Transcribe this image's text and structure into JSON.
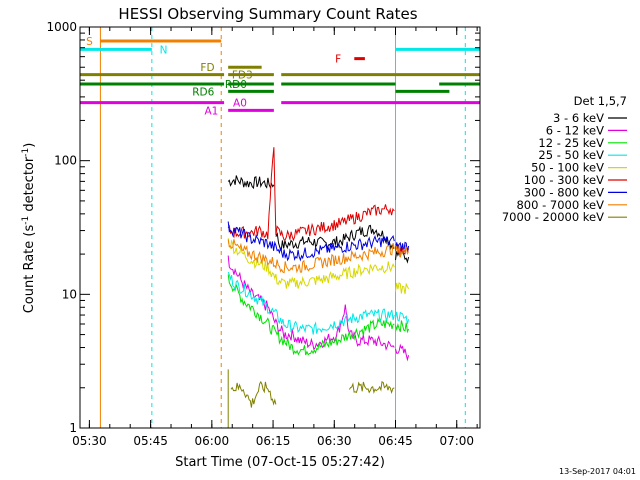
{
  "chart_data": {
    "type": "line",
    "title": "HESSI Observing Summary Count Rates",
    "xlabel": "Start Time (07-Oct-15 05:27:42)",
    "ylabel": "Count Rate (s-1 detector-1)",
    "ylabel_parts": {
      "base": "Count Rate (s",
      "exp1": "-1",
      "mid": " detector",
      "exp2": "-1",
      "end": ")"
    },
    "yscale": "log",
    "ylim": [
      1,
      1000
    ],
    "xlim_min": [
      0,
      98
    ],
    "x_unit": "minutes after 05:27:42",
    "x_ticks": [
      {
        "m": 2.3,
        "label": "05:30"
      },
      {
        "m": 17.3,
        "label": "05:45"
      },
      {
        "m": 32.3,
        "label": "06:00"
      },
      {
        "m": 47.3,
        "label": "06:15"
      },
      {
        "m": 62.3,
        "label": "06:30"
      },
      {
        "m": 77.3,
        "label": "06:45"
      },
      {
        "m": 92.3,
        "label": "07:00"
      }
    ],
    "y_ticks": [
      {
        "v": 1,
        "label": "1"
      },
      {
        "v": 10,
        "label": "10"
      },
      {
        "v": 100,
        "label": "100"
      },
      {
        "v": 1000,
        "label": "1000"
      }
    ],
    "legend": {
      "title": "Det 1,5,7",
      "position": "right",
      "entries": [
        {
          "label": "3 - 6 keV",
          "color": "#000000"
        },
        {
          "label": "6 - 12 keV",
          "color": "#e000e0"
        },
        {
          "label": "12 - 25 keV",
          "color": "#00e000"
        },
        {
          "label": "25 - 50 keV",
          "color": "#00e8e8"
        },
        {
          "label": "50 - 100 keV",
          "color": "#d8d800"
        },
        {
          "label": "100 - 300 keV",
          "color": "#e00000"
        },
        {
          "label": "300 - 800 keV",
          "color": "#0000e0"
        },
        {
          "label": "800 - 7000 keV",
          "color": "#f08000"
        },
        {
          "label": "7000 - 20000 keV",
          "color": "#808000"
        }
      ]
    },
    "series": [
      {
        "name": "3 - 6 keV",
        "color": "#000000",
        "segments": [
          {
            "x": [
              36.3,
              38,
              41,
              44,
              47.5
            ],
            "y": [
              70,
              72,
              68,
              69,
              66
            ]
          },
          {
            "x": [
              48,
              49,
              52,
              56,
              60,
              64,
              68,
              72,
              75,
              77
            ],
            "y": [
              29,
              23,
              24,
              25,
              24,
              25,
              29,
              31,
              27,
              22
            ]
          },
          {
            "x": [
              77.3,
              80.5
            ],
            "y": [
              20,
              19
            ]
          }
        ]
      },
      {
        "name": "6 - 12 keV",
        "color": "#e000e0",
        "segments": [
          {
            "x": [
              36.3,
              38,
              40,
              42,
              44,
              46,
              48,
              50,
              52,
              54,
              57,
              60,
              63,
              65,
              66,
              68,
              72,
              75,
              77
            ],
            "y": [
              18,
              15,
              12,
              10,
              9,
              8,
              6,
              5,
              5,
              4.5,
              4.2,
              4.5,
              5,
              8,
              5,
              4.5,
              4.5,
              4.2,
              4
            ]
          },
          {
            "x": [
              77.3,
              80.5
            ],
            "y": [
              4,
              3.5
            ]
          }
        ]
      },
      {
        "name": "12 - 25 keV",
        "color": "#00e000",
        "segments": [
          {
            "x": [
              36.3,
              38,
              40,
              42,
              44,
              46,
              48,
              50,
              52,
              55,
              58,
              60,
              63,
              66,
              70,
              73,
              77
            ],
            "y": [
              13,
              11,
              9,
              8,
              7,
              6,
              5,
              4.5,
              4,
              3.8,
              4,
              4.2,
              4.5,
              5,
              5.5,
              6,
              6
            ]
          },
          {
            "x": [
              77.3,
              80.5
            ],
            "y": [
              6,
              5.5
            ]
          }
        ]
      },
      {
        "name": "25 - 50 keV",
        "color": "#00e8e8",
        "segments": [
          {
            "x": [
              36.3,
              38,
              40,
              42,
              44,
              46,
              48,
              50,
              54,
              58,
              62,
              66,
              70,
              74,
              77
            ],
            "y": [
              14,
              12,
              11,
              10,
              9,
              8,
              7,
              6,
              5.5,
              5.5,
              6,
              6.5,
              7,
              7,
              7
            ]
          },
          {
            "x": [
              77.3,
              80.5
            ],
            "y": [
              7,
              6.5
            ]
          }
        ]
      },
      {
        "name": "50 - 100 keV",
        "color": "#d8d800",
        "segments": [
          {
            "x": [
              36.3,
              38,
              40,
              42,
              44,
              46,
              48,
              50,
              52,
              56,
              60,
              64,
              68,
              72,
              77
            ],
            "y": [
              25,
              22,
              20,
              18,
              17,
              16,
              13,
              12,
              12,
              12.5,
              13,
              14,
              15,
              16,
              16
            ]
          },
          {
            "x": [
              77.3,
              80.5
            ],
            "y": [
              11,
              11
            ]
          }
        ]
      },
      {
        "name": "100 - 300 keV",
        "color": "#e00000",
        "segments": [
          {
            "x": [
              36.3,
              38,
              40,
              42,
              44,
              46,
              47.5,
              48,
              50,
              52,
              56,
              60,
              64,
              68,
              72,
              76,
              77
            ],
            "y": [
              30,
              29,
              29,
              29,
              30,
              28,
              128,
              30,
              27,
              28,
              30,
              32,
              34,
              38,
              42,
              44,
              42
            ]
          },
          {
            "x": [
              77.3,
              80.5
            ],
            "y": [
              22,
              22
            ]
          }
        ]
      },
      {
        "name": "300 - 800 keV",
        "color": "#0000e0",
        "segments": [
          {
            "x": [
              36.3,
              38,
              40,
              42,
              44,
              46,
              48,
              50,
              54,
              58,
              62,
              66,
              70,
              74,
              77
            ],
            "y": [
              32,
              30,
              28,
              26,
              25,
              24,
              22,
              20,
              20,
              21,
              22,
              23,
              24,
              25,
              25
            ]
          },
          {
            "x": [
              77.3,
              80.5
            ],
            "y": [
              23,
              23
            ]
          }
        ]
      },
      {
        "name": "800 - 7000 keV",
        "color": "#f08000",
        "segments": [
          {
            "x": [
              36.3,
              38,
              40,
              42,
              44,
              46,
              48,
              50,
              54,
              58,
              62,
              66,
              70,
              74,
              77
            ],
            "y": [
              25,
              23,
              21,
              20,
              19,
              18,
              17,
              16,
              16,
              17,
              18,
              19,
              20,
              21,
              22
            ]
          },
          {
            "x": [
              77.3,
              80.5
            ],
            "y": [
              21,
              21
            ]
          }
        ]
      },
      {
        "name": "7000 - 20000 keV",
        "color": "#808000",
        "segments": [
          {
            "x": [
              36.3,
              36.3
            ],
            "y": [
              3,
              1
            ]
          },
          {
            "x": [
              37,
              40,
              42,
              44,
              46,
              48
            ],
            "y": [
              2,
              2,
              1.5,
              2,
              2,
              1.5
            ]
          },
          {
            "x": [
              66,
              68,
              70,
              72,
              74,
              76,
              77
            ],
            "y": [
              2,
              2,
              2,
              2,
              2,
              2,
              2
            ]
          }
        ]
      }
    ],
    "verticals": [
      {
        "m": 5.0,
        "color": "#f08000",
        "dashed": false,
        "name": "orange-solid-line"
      },
      {
        "m": 17.6,
        "color": "#00e8e8",
        "dashed": true,
        "name": "cyan-dashed-line-1"
      },
      {
        "m": 34.6,
        "color": "#f08000",
        "dashed": true,
        "name": "orange-dashed-line"
      },
      {
        "m": 77.3,
        "color": "#00e8e8",
        "dashed": false,
        "name": "cyan-solid-line"
      },
      {
        "m": 94.4,
        "color": "#00e8e8",
        "dashed": true,
        "name": "cyan-dashed-line-2"
      }
    ],
    "flag_bars": [
      {
        "flag": "S",
        "color": "#f08000",
        "y": 785,
        "segments": [
          [
            5,
            34.6
          ]
        ],
        "label_m": 1.5
      },
      {
        "flag": "N",
        "color": "#00e8e8",
        "y": 680,
        "segments": [
          [
            0,
            17.6
          ],
          [
            77.3,
            98
          ]
        ],
        "label_m": 19.5
      },
      {
        "flag": "F",
        "color": "#e00000",
        "y": 580,
        "segments": [
          [
            67.2,
            69.8
          ]
        ],
        "label_m": 62.5
      },
      {
        "flag": "FD",
        "color": "#808000",
        "y": 500,
        "segments": [
          [
            36.3,
            44.5
          ]
        ],
        "label_m": 29.5
      },
      {
        "flag": "FD3",
        "color": "#808000",
        "y": 440,
        "segments": [
          [
            0,
            35.3
          ],
          [
            36.3,
            47.5
          ],
          [
            49.3,
            98
          ]
        ],
        "label_m": 37.2
      },
      {
        "flag": "RD0",
        "color": "#008000",
        "y": 375,
        "segments": [
          [
            0,
            35.3
          ],
          [
            36.3,
            47.5
          ],
          [
            49.3,
            77.3
          ],
          [
            88,
            98
          ]
        ],
        "label_m": 35.5
      },
      {
        "flag": "RD6",
        "color": "#008000",
        "y": 330,
        "segments": [
          [
            36.3,
            47.5
          ],
          [
            77.3,
            90.5
          ]
        ],
        "label_m": 27.5
      },
      {
        "flag": "A0",
        "color": "#e000e0",
        "y": 272,
        "segments": [
          [
            0,
            35.3
          ],
          [
            49.3,
            98
          ]
        ],
        "label_m": 37.5
      },
      {
        "flag": "A1",
        "color": "#e000e0",
        "y": 238,
        "segments": [
          [
            36.3,
            47.5
          ]
        ],
        "label_m": 30.5
      }
    ],
    "timestamp": "13-Sep-2017 04:01"
  }
}
